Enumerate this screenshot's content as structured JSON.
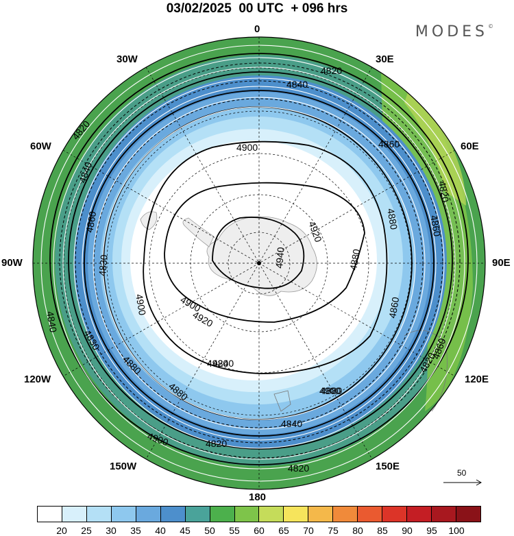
{
  "title": "03/02/2025  00 UTC  + 096 hrs",
  "brand": "MODES",
  "brand_mark": "©",
  "longitude_labels": {
    "lon_0": "0",
    "lon_30e": "30E",
    "lon_60e": "60E",
    "lon_90e": "90E",
    "lon_120e": "120E",
    "lon_150e": "150E",
    "lon_180": "180",
    "lon_150w": "150W",
    "lon_120w": "120W",
    "lon_90w": "90W",
    "lon_60w": "60W",
    "lon_30w": "30W"
  },
  "contour_labels": [
    "4820",
    "4840",
    "4860",
    "4880",
    "4900",
    "4920",
    "4940",
    "4820",
    "4840",
    "4860",
    "4880",
    "4900",
    "4920",
    "4830",
    "4860",
    "4880",
    "4900",
    "4840",
    "4820",
    "4860",
    "4880",
    "4900",
    "4840",
    "4820",
    "4820",
    "4820",
    "4840",
    "4830",
    "4860",
    "4880",
    "4900",
    "4920"
  ],
  "vector_reference": {
    "value": "50",
    "icon": "arrow-right-icon"
  },
  "colorbar": {
    "colors": [
      "#ffffff",
      "#d8f0fb",
      "#b4e0f6",
      "#8ec8ee",
      "#6aa9de",
      "#4d8fcc",
      "#4aa39a",
      "#4cb04c",
      "#7ec44a",
      "#c5dc5a",
      "#f6e45c",
      "#f4b84a",
      "#f08a3a",
      "#ea5a30",
      "#dc3428",
      "#c41e24",
      "#a8181f",
      "#8a1218"
    ],
    "labels": [
      "20",
      "25",
      "30",
      "35",
      "40",
      "45",
      "50",
      "55",
      "60",
      "65",
      "70",
      "75",
      "80",
      "85",
      "90",
      "95",
      "100"
    ]
  }
}
